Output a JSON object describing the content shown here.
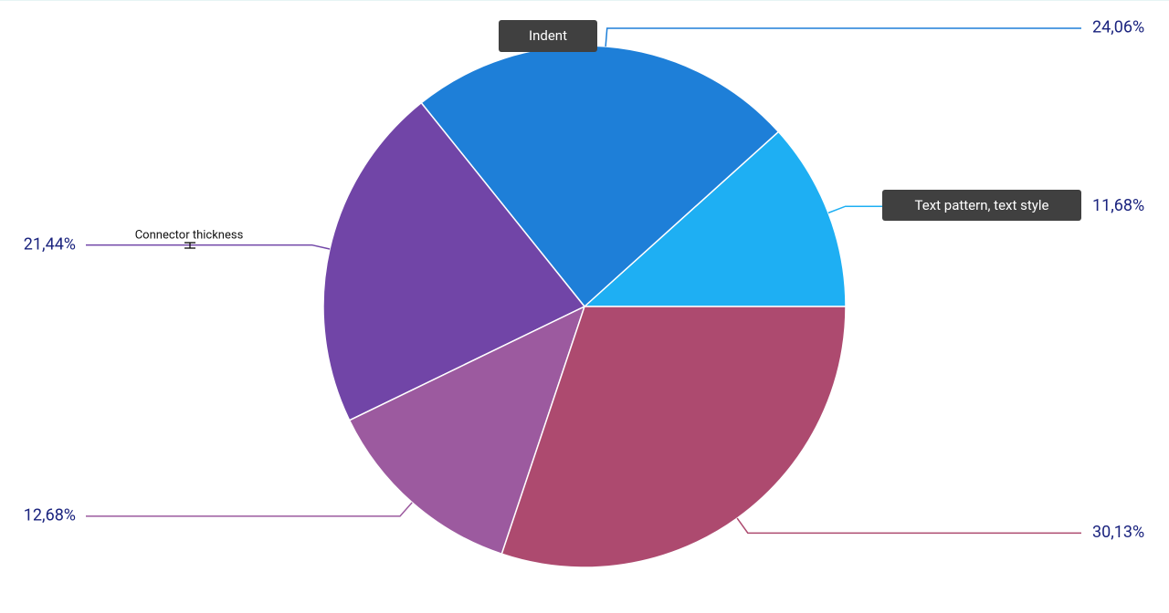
{
  "chart_data": {
    "type": "pie",
    "values": [
      11.68,
      24.06,
      21.44,
      12.68,
      30.13
    ],
    "value_labels": [
      "11,68%",
      "24,06%",
      "21,44%",
      "12,68%",
      "30,13%"
    ],
    "colors": [
      "#1eaff3",
      "#1e7fd8",
      "#7145a7",
      "#9c5a9f",
      "#ad4a6f"
    ],
    "annotations": [
      "Indent",
      "Text pattern, text style",
      "Connector thickness"
    ]
  }
}
